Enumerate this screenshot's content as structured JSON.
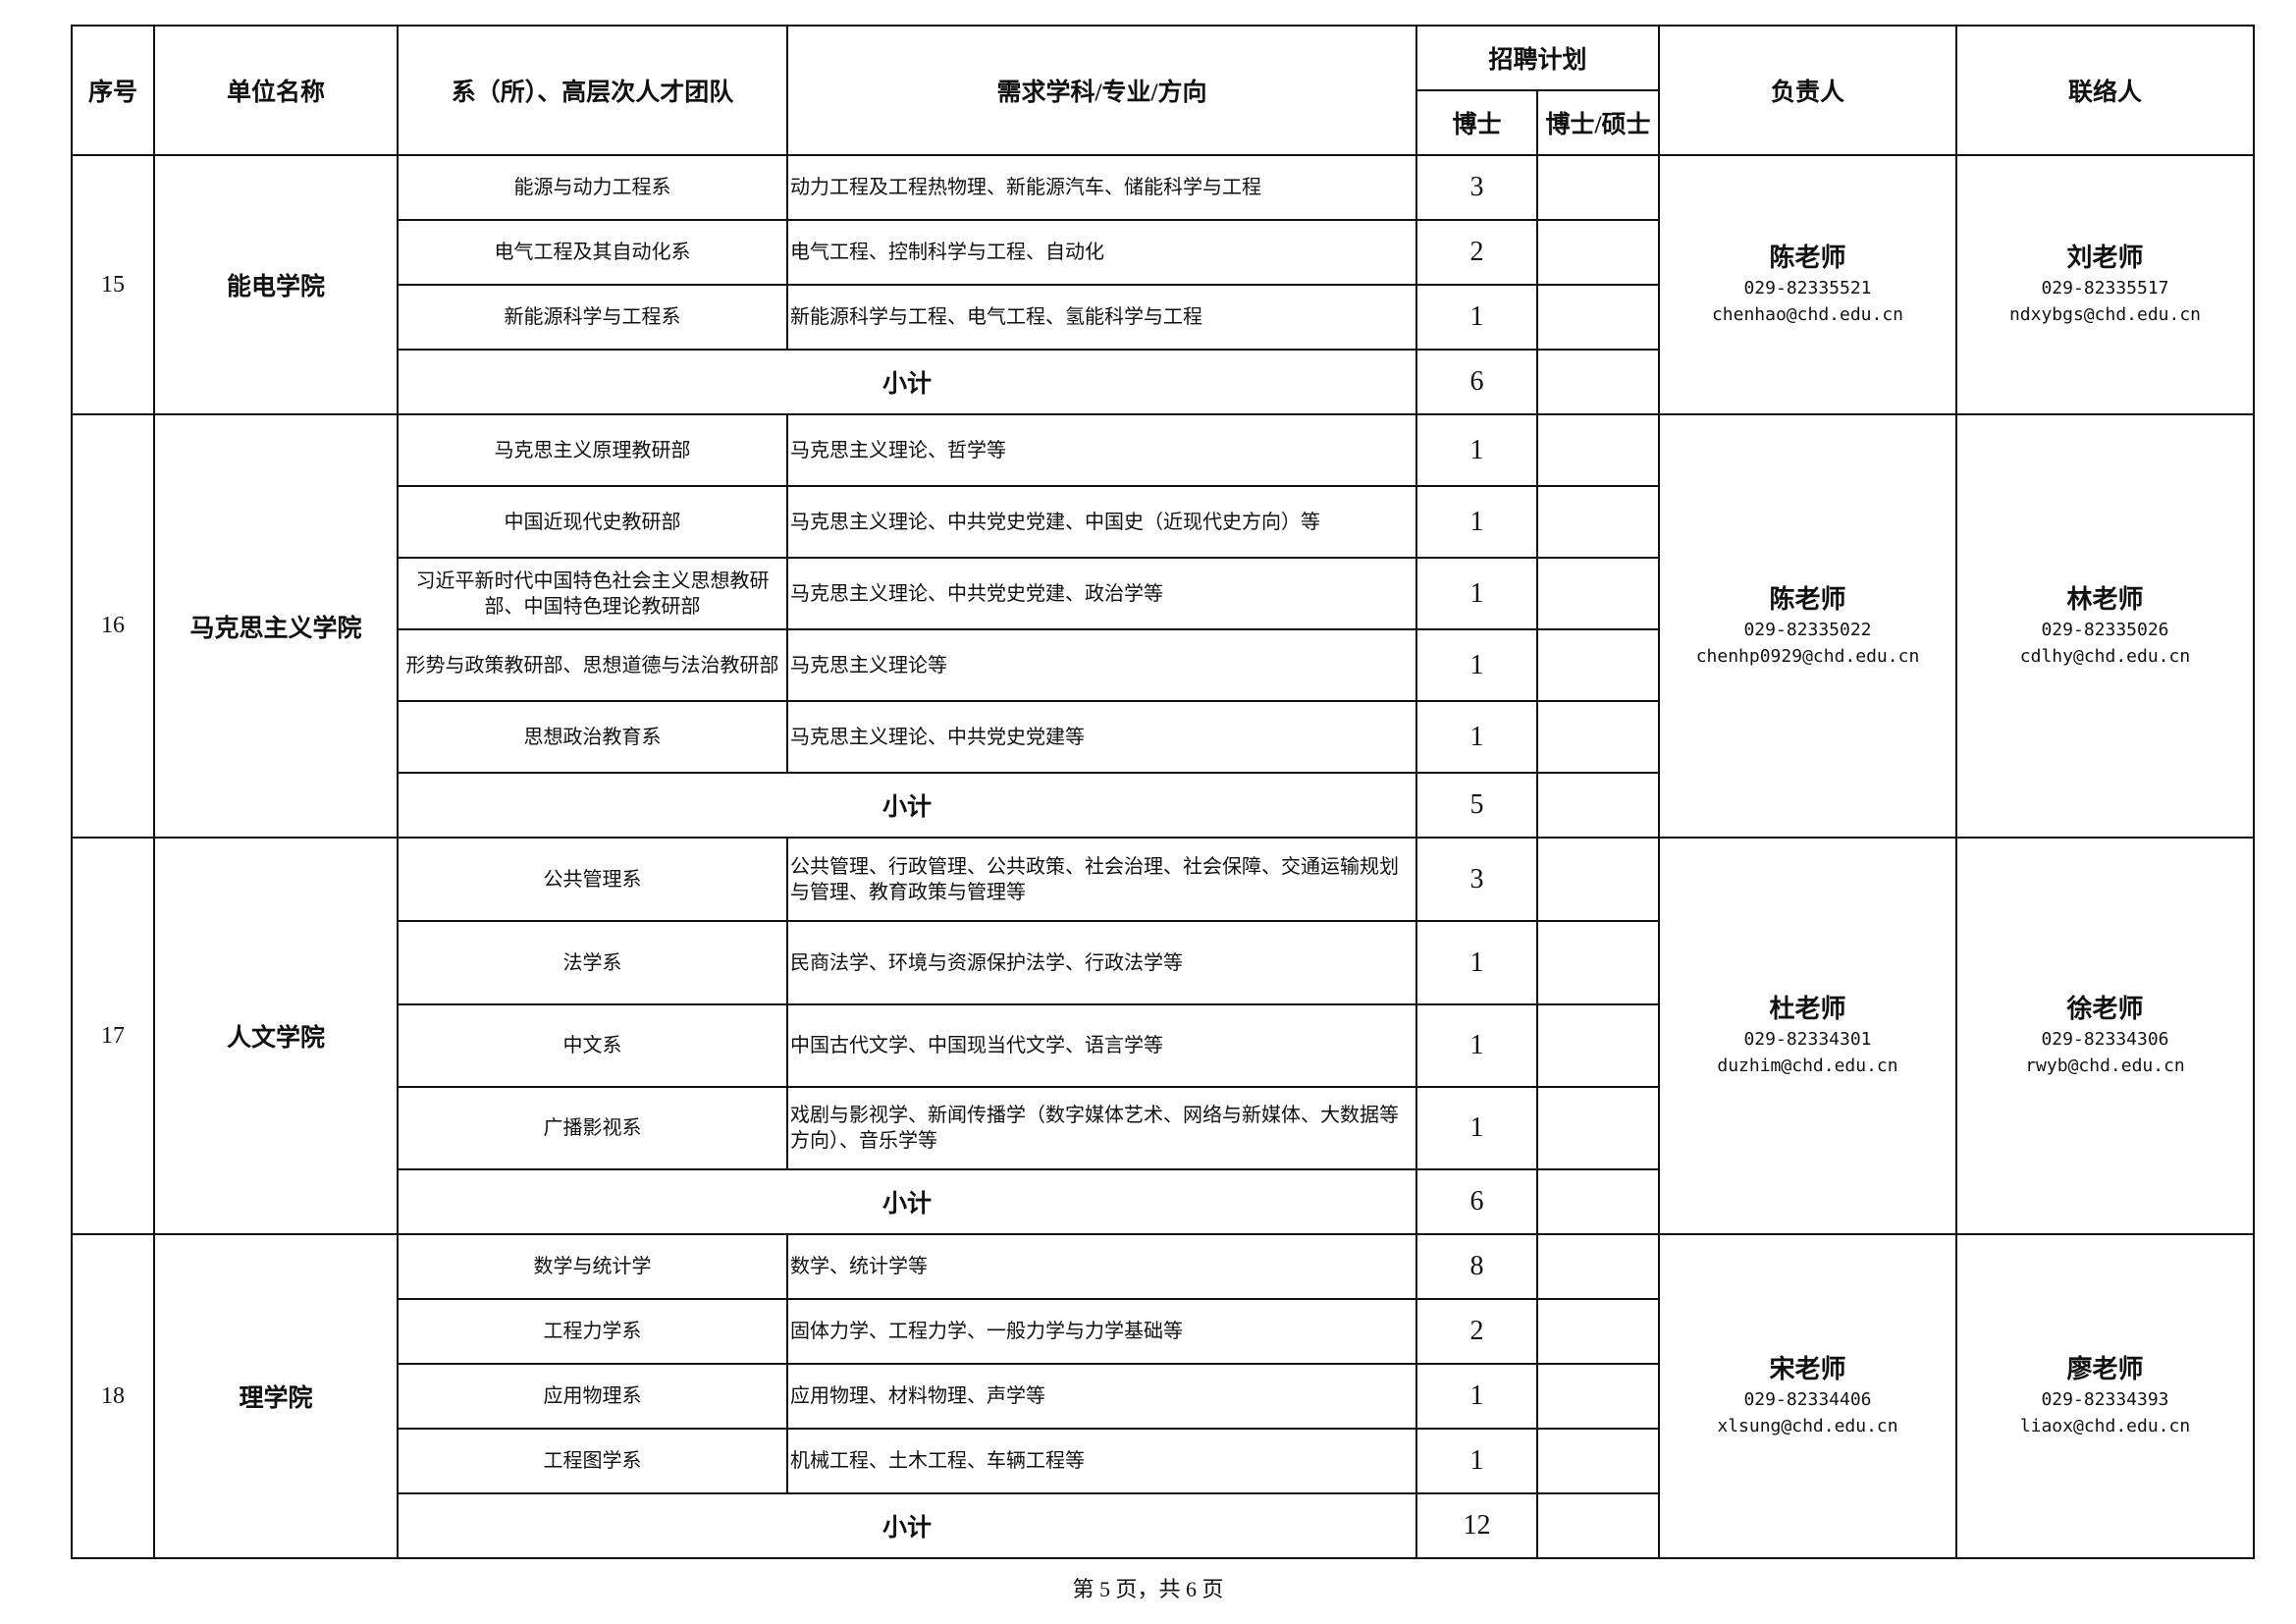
{
  "header": {
    "index": "序号",
    "unit": "单位名称",
    "dept": "系（所）、高层次人才团队",
    "subject": "需求学科/专业/方向",
    "plan": "招聘计划",
    "phd": "博士",
    "phd_master": "博士/硕士",
    "leader": "负责人",
    "contact": "联络人"
  },
  "subtotal_label": "小计",
  "groups": [
    {
      "index": "15",
      "unit": "能电学院",
      "rows": [
        {
          "dept": "能源与动力工程系",
          "subject": "动力工程及工程热物理、新能源汽车、储能科学与工程",
          "phd": "3",
          "phd_master": ""
        },
        {
          "dept": "电气工程及其自动化系",
          "subject": "电气工程、控制科学与工程、自动化",
          "phd": "2",
          "phd_master": ""
        },
        {
          "dept": "新能源科学与工程系",
          "subject": "新能源科学与工程、电气工程、氢能科学与工程",
          "phd": "1",
          "phd_master": ""
        }
      ],
      "subtotal": "6",
      "leader": {
        "name": "陈老师",
        "phone": "029-82335521",
        "email": "chenhao@chd.edu.cn"
      },
      "contact": {
        "name": "刘老师",
        "phone": "029-82335517",
        "email": "ndxybgs@chd.edu.cn"
      }
    },
    {
      "index": "16",
      "unit": "马克思主义学院",
      "rows": [
        {
          "dept": "马克思主义原理教研部",
          "subject": "马克思主义理论、哲学等",
          "phd": "1",
          "phd_master": ""
        },
        {
          "dept": "中国近现代史教研部",
          "subject": "马克思主义理论、中共党史党建、中国史（近现代史方向）等",
          "phd": "1",
          "phd_master": ""
        },
        {
          "dept": "习近平新时代中国特色社会主义思想教研部、中国特色理论教研部",
          "subject": "马克思主义理论、中共党史党建、政治学等",
          "phd": "1",
          "phd_master": ""
        },
        {
          "dept": "形势与政策教研部、思想道德与法治教研部",
          "subject": "马克思主义理论等",
          "phd": "1",
          "phd_master": ""
        },
        {
          "dept": "思想政治教育系",
          "subject": "马克思主义理论、中共党史党建等",
          "phd": "1",
          "phd_master": ""
        }
      ],
      "subtotal": "5",
      "leader": {
        "name": "陈老师",
        "phone": "029-82335022",
        "email": "chenhp0929@chd.edu.cn"
      },
      "contact": {
        "name": "林老师",
        "phone": "029-82335026",
        "email": "cdlhy@chd.edu.cn"
      }
    },
    {
      "index": "17",
      "unit": "人文学院",
      "rows": [
        {
          "dept": "公共管理系",
          "subject": "公共管理、行政管理、公共政策、社会治理、社会保障、交通运输规划与管理、教育政策与管理等",
          "phd": "3",
          "phd_master": ""
        },
        {
          "dept": "法学系",
          "subject": "民商法学、环境与资源保护法学、行政法学等",
          "phd": "1",
          "phd_master": ""
        },
        {
          "dept": "中文系",
          "subject": "中国古代文学、中国现当代文学、语言学等",
          "phd": "1",
          "phd_master": ""
        },
        {
          "dept": "广播影视系",
          "subject": "戏剧与影视学、新闻传播学（数字媒体艺术、网络与新媒体、大数据等方向）、音乐学等",
          "phd": "1",
          "phd_master": ""
        }
      ],
      "subtotal": "6",
      "leader": {
        "name": "杜老师",
        "phone": "029-82334301",
        "email": "duzhim@chd.edu.cn"
      },
      "contact": {
        "name": "徐老师",
        "phone": "029-82334306",
        "email": "rwyb@chd.edu.cn"
      }
    },
    {
      "index": "18",
      "unit": "理学院",
      "rows": [
        {
          "dept": "数学与统计学",
          "subject": "数学、统计学等",
          "phd": "8",
          "phd_master": ""
        },
        {
          "dept": "工程力学系",
          "subject": "固体力学、工程力学、一般力学与力学基础等",
          "phd": "2",
          "phd_master": ""
        },
        {
          "dept": "应用物理系",
          "subject": "应用物理、材料物理、声学等",
          "phd": "1",
          "phd_master": ""
        },
        {
          "dept": "工程图学系",
          "subject": "机械工程、土木工程、车辆工程等",
          "phd": "1",
          "phd_master": ""
        }
      ],
      "subtotal": "12",
      "leader": {
        "name": "宋老师",
        "phone": "029-82334406",
        "email": "xlsung@chd.edu.cn"
      },
      "contact": {
        "name": "廖老师",
        "phone": "029-82334393",
        "email": "liaox@chd.edu.cn"
      }
    }
  ],
  "footer": "第 5 页，共 6 页"
}
